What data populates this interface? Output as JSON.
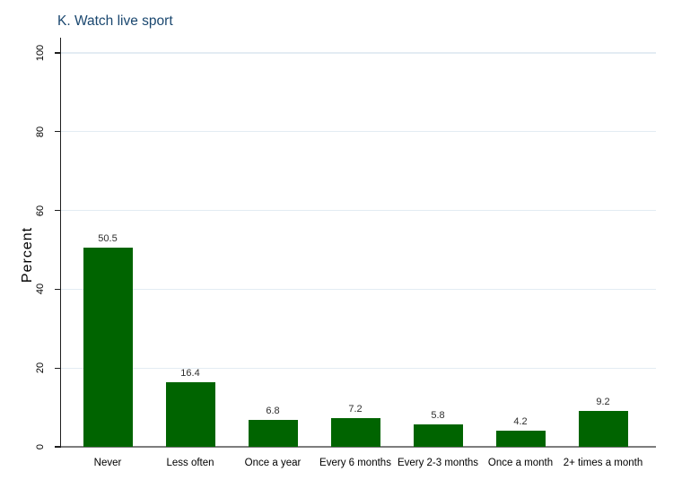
{
  "title": "K. Watch live sport",
  "chart_data": {
    "type": "bar",
    "title": "K. Watch live sport",
    "categories": [
      "Never",
      "Less often",
      "Once a year",
      "Every 6 months",
      "Every 2-3 months",
      "Once a month",
      "2+ times a month"
    ],
    "values": [
      50.5,
      16.4,
      6.8,
      7.2,
      5.8,
      4.2,
      9.2
    ],
    "value_labels": [
      "50.5",
      "16.4",
      "6.8",
      "7.2",
      "5.8",
      "4.2",
      "9.2"
    ],
    "xlabel": "",
    "ylabel": "Percent",
    "ylim": [
      0,
      100
    ],
    "yticks": [
      0,
      20,
      40,
      60,
      80,
      100
    ],
    "grid": true,
    "legend": "none",
    "colors": {
      "bar": "#006400",
      "grid": "#e3ecf3",
      "axis": "#1f1f1f",
      "baseline": "#7d7d7d",
      "title": "#1a476f",
      "text": "#000000",
      "value_label": "#2e2e2e"
    }
  }
}
